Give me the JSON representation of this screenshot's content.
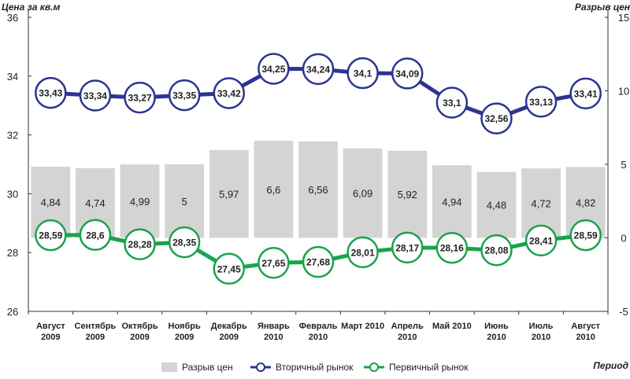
{
  "chart_data": {
    "type": "bar+line",
    "left_axis_title": "Цена за кв.м",
    "right_axis_title": "Разрыв цен",
    "x_axis_title": "Период",
    "left_axis": {
      "min": 26,
      "max": 36,
      "ticks": [
        26,
        28,
        30,
        32,
        34,
        36
      ]
    },
    "right_axis": {
      "min": -5,
      "max": 15,
      "ticks": [
        "-5",
        "0",
        "5",
        "10",
        "15"
      ]
    },
    "categories": [
      [
        "Август",
        "2009"
      ],
      [
        "Сентябрь",
        "2009"
      ],
      [
        "Октябрь",
        "2009"
      ],
      [
        "Ноябрь",
        "2009"
      ],
      [
        "Декабрь",
        "2009"
      ],
      [
        "Январь",
        "2010"
      ],
      [
        "Февраль",
        "2010"
      ],
      [
        "Март 2010",
        ""
      ],
      [
        "Апрель",
        "2010"
      ],
      [
        "Май 2010",
        ""
      ],
      [
        "Июнь",
        "2010"
      ],
      [
        "Июль",
        "2010"
      ],
      [
        "Август",
        "2010"
      ]
    ],
    "series": [
      {
        "name": "Разрыв цен",
        "kind": "bar",
        "axis": "right",
        "color": "#d4d4d4",
        "values": [
          4.84,
          4.74,
          4.99,
          5,
          5.97,
          6.6,
          6.56,
          6.09,
          5.92,
          4.94,
          4.48,
          4.72,
          4.82
        ],
        "labels": [
          "4,84",
          "4,74",
          "4,99",
          "5",
          "5,97",
          "6,6",
          "6,56",
          "6,09",
          "5,92",
          "4,94",
          "4,48",
          "4,72",
          "4,82"
        ]
      },
      {
        "name": "Вторичный рынок",
        "kind": "line",
        "axis": "left",
        "color": "#2b3590",
        "values": [
          33.43,
          33.34,
          33.27,
          33.35,
          33.42,
          34.25,
          34.24,
          34.1,
          34.09,
          33.1,
          32.56,
          33.13,
          33.41
        ],
        "labels": [
          "33,43",
          "33,34",
          "33,27",
          "33,35",
          "33,42",
          "34,25",
          "34,24",
          "34,1",
          "34,09",
          "33,1",
          "32,56",
          "33,13",
          "33,41"
        ]
      },
      {
        "name": "Первичный рынок",
        "kind": "line",
        "axis": "left",
        "color": "#1aa34a",
        "values": [
          28.59,
          28.6,
          28.28,
          28.35,
          27.45,
          27.65,
          27.68,
          28.01,
          28.17,
          28.16,
          28.08,
          28.41,
          28.59
        ],
        "labels": [
          "28,59",
          "28,6",
          "28,28",
          "28,35",
          "27,45",
          "27,65",
          "27,68",
          "28,01",
          "28,17",
          "28,16",
          "28,08",
          "28,41",
          "28,59"
        ]
      }
    ],
    "legend": [
      "Разрыв цен",
      "Вторичный рынок",
      "Первичный рынок"
    ],
    "legend_position": "bottom"
  }
}
